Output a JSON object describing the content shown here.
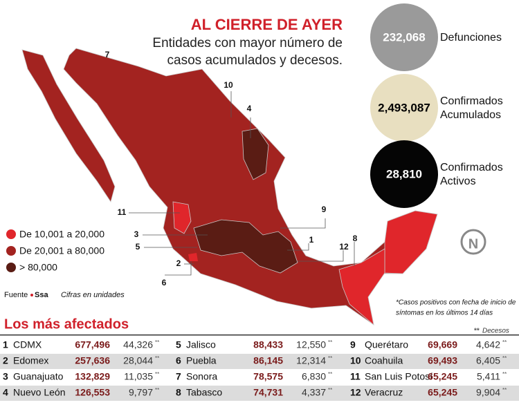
{
  "header": {
    "title": "AL CIERRE DE AYER",
    "subtitle_lines": [
      "Entidades con mayor número de",
      "casos acumulados y decesos."
    ]
  },
  "stats": [
    {
      "value": "232,068",
      "label_lines": [
        "Defunciones"
      ],
      "color": "#9a9a9a",
      "text_color": "#ffffff"
    },
    {
      "value": "2,493,087",
      "label_lines": [
        "Confirmados",
        "Acumulados"
      ],
      "color": "#e8dfc0",
      "text_color": "#000000"
    },
    {
      "value": "28,810",
      "label_lines": [
        "Confirmados",
        "Activos"
      ],
      "color": "#050505",
      "text_color": "#ffffff"
    }
  ],
  "map": {
    "labels": [
      "7",
      "10",
      "4",
      "11",
      "9",
      "3",
      "5",
      "1",
      "12",
      "8",
      "2",
      "6"
    ],
    "logo": "N"
  },
  "legend": [
    {
      "label": "De 10,001 a 20,000",
      "color": "#e0262b"
    },
    {
      "label": "De 20,001 a 80,000",
      "color": "#a32320"
    },
    {
      "label": "> 80,000",
      "color": "#5a1c14"
    }
  ],
  "source": {
    "label": "Fuente",
    "name": "Ssa",
    "note": "Cifras en unidades"
  },
  "footnote": [
    "*Casos positivos con fecha de inicio de",
    "síntomas en los últimos 14 días"
  ],
  "table": {
    "title": "Los más afectados",
    "marker": "**",
    "note": "Decesos",
    "rows": [
      [
        "1",
        "CDMX",
        "677,496",
        "44,326"
      ],
      [
        "2",
        "Edomex",
        "257,636",
        "28,044"
      ],
      [
        "3",
        "Guanajuato",
        "132,829",
        "11,035"
      ],
      [
        "4",
        "Nuevo León",
        "126,553",
        "9,797"
      ],
      [
        "5",
        "Jalisco",
        "88,433",
        "12,550"
      ],
      [
        "6",
        "Puebla",
        "86,145",
        "12,314"
      ],
      [
        "7",
        "Sonora",
        "78,575",
        "6,830"
      ],
      [
        "8",
        "Tabasco",
        "74,731",
        "4,337"
      ],
      [
        "9",
        "Querétaro",
        "69,669",
        "4,642"
      ],
      [
        "10",
        "Coahuila",
        "69,493",
        "6,405"
      ],
      [
        "11",
        "San Luis Potosí",
        "65,245",
        "5,411"
      ],
      [
        "12",
        "Veracruz",
        "65,245",
        "9,904"
      ]
    ]
  }
}
